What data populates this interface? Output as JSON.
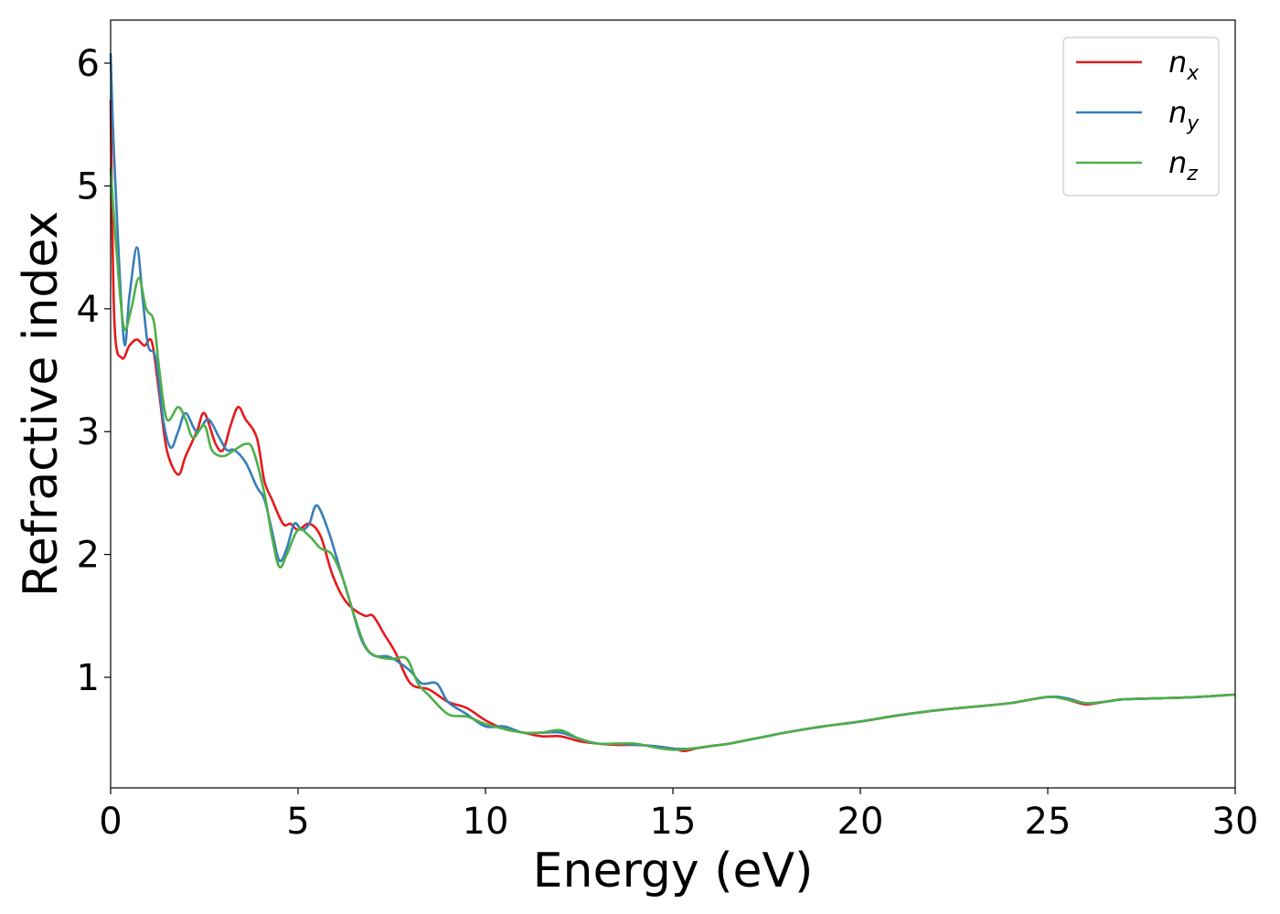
{
  "chart_data": {
    "type": "line",
    "title": "",
    "xlabel": "Energy (eV)",
    "ylabel": "Refractive index",
    "xlim": [
      0,
      30
    ],
    "ylim": [
      0.1,
      6.35
    ],
    "xticks": [
      0,
      5,
      10,
      15,
      20,
      25,
      30
    ],
    "yticks": [
      1,
      2,
      3,
      4,
      5,
      6
    ],
    "grid": false,
    "legend_position": "top-right",
    "series": [
      {
        "name": "n",
        "subscript": "x",
        "color": "#e41a1c",
        "x": [
          0,
          0.1,
          0.3,
          0.5,
          0.7,
          0.9,
          1.1,
          1.3,
          1.5,
          1.8,
          2.0,
          2.3,
          2.5,
          2.8,
          3.0,
          3.2,
          3.4,
          3.6,
          3.9,
          4.1,
          4.3,
          4.6,
          4.8,
          5.0,
          5.3,
          5.6,
          5.9,
          6.2,
          6.5,
          6.8,
          7.0,
          7.3,
          7.6,
          8.0,
          8.5,
          9.0,
          9.5,
          10.0,
          10.5,
          11.0,
          11.5,
          12.0,
          12.5,
          13.0,
          13.5,
          14.0,
          14.5,
          15.0,
          15.3,
          15.6,
          16.0,
          16.5,
          17.0,
          17.5,
          18.0,
          19.0,
          20.0,
          21.0,
          22.0,
          23.0,
          24.0,
          25.0,
          25.5,
          26.0,
          26.5,
          27.0,
          28.0,
          29.0,
          30.0
        ],
        "y": [
          5.7,
          3.9,
          3.6,
          3.7,
          3.75,
          3.7,
          3.73,
          3.3,
          2.85,
          2.65,
          2.8,
          3.0,
          3.15,
          2.9,
          2.85,
          3.05,
          3.2,
          3.1,
          2.95,
          2.6,
          2.45,
          2.25,
          2.25,
          2.2,
          2.25,
          2.15,
          1.85,
          1.65,
          1.55,
          1.5,
          1.5,
          1.35,
          1.2,
          0.95,
          0.9,
          0.8,
          0.75,
          0.65,
          0.58,
          0.55,
          0.52,
          0.52,
          0.48,
          0.46,
          0.45,
          0.45,
          0.44,
          0.42,
          0.4,
          0.42,
          0.44,
          0.46,
          0.49,
          0.52,
          0.55,
          0.6,
          0.64,
          0.69,
          0.73,
          0.76,
          0.79,
          0.84,
          0.82,
          0.78,
          0.8,
          0.82,
          0.83,
          0.84,
          0.86
        ]
      },
      {
        "name": "n",
        "subscript": "y",
        "color": "#377eb8",
        "x": [
          0,
          0.1,
          0.35,
          0.5,
          0.7,
          0.85,
          1.0,
          1.2,
          1.4,
          1.6,
          1.8,
          2.0,
          2.3,
          2.6,
          2.9,
          3.1,
          3.3,
          3.6,
          3.9,
          4.1,
          4.3,
          4.5,
          4.7,
          4.9,
          5.1,
          5.3,
          5.5,
          5.8,
          6.1,
          6.4,
          6.7,
          7.0,
          7.4,
          7.7,
          8.0,
          8.3,
          8.7,
          9.0,
          9.5,
          10.0,
          10.5,
          11.0,
          11.5,
          12.0,
          12.5,
          13.0,
          13.5,
          14.0,
          14.5,
          15.0,
          15.5,
          16.0,
          16.5,
          17.0,
          17.5,
          18.0,
          19.0,
          20.0,
          21.0,
          22.0,
          23.0,
          24.0,
          25.0,
          25.5,
          26.0,
          26.5,
          27.0,
          28.0,
          29.0,
          30.0
        ],
        "y": [
          6.08,
          5.2,
          3.75,
          4.1,
          4.5,
          4.1,
          3.7,
          3.6,
          3.1,
          2.87,
          3.0,
          3.15,
          3.0,
          3.1,
          2.95,
          2.85,
          2.85,
          2.75,
          2.55,
          2.45,
          2.2,
          1.95,
          2.05,
          2.25,
          2.2,
          2.25,
          2.4,
          2.2,
          1.9,
          1.6,
          1.3,
          1.18,
          1.17,
          1.12,
          1.05,
          0.95,
          0.95,
          0.8,
          0.7,
          0.6,
          0.6,
          0.55,
          0.55,
          0.55,
          0.5,
          0.46,
          0.46,
          0.45,
          0.44,
          0.42,
          0.42,
          0.44,
          0.46,
          0.49,
          0.52,
          0.55,
          0.6,
          0.64,
          0.69,
          0.73,
          0.76,
          0.79,
          0.84,
          0.83,
          0.79,
          0.8,
          0.82,
          0.83,
          0.84,
          0.86
        ]
      },
      {
        "name": "n",
        "subscript": "z",
        "color": "#4daf4a",
        "x": [
          0,
          0.15,
          0.35,
          0.55,
          0.75,
          0.95,
          1.15,
          1.3,
          1.5,
          1.8,
          2.0,
          2.2,
          2.5,
          2.7,
          3.0,
          3.3,
          3.6,
          3.8,
          4.1,
          4.3,
          4.5,
          4.7,
          5.0,
          5.3,
          5.6,
          5.9,
          6.2,
          6.5,
          6.8,
          7.1,
          7.5,
          7.9,
          8.2,
          8.5,
          9.0,
          9.5,
          10.0,
          10.5,
          11.0,
          11.5,
          12.0,
          12.5,
          13.0,
          13.5,
          14.0,
          14.5,
          15.0,
          15.5,
          16.0,
          16.5,
          17.0,
          17.5,
          18.0,
          19.0,
          20.0,
          21.0,
          22.0,
          23.0,
          24.0,
          25.0,
          25.5,
          26.0,
          26.5,
          27.0,
          28.0,
          29.0,
          30.0
        ],
        "y": [
          5.15,
          4.5,
          3.85,
          4.0,
          4.25,
          4.0,
          3.9,
          3.5,
          3.1,
          3.2,
          3.1,
          2.95,
          3.05,
          2.85,
          2.8,
          2.85,
          2.9,
          2.85,
          2.5,
          2.15,
          1.9,
          2.0,
          2.2,
          2.15,
          2.05,
          2.0,
          1.8,
          1.5,
          1.25,
          1.17,
          1.15,
          1.15,
          0.95,
          0.85,
          0.7,
          0.68,
          0.62,
          0.58,
          0.55,
          0.55,
          0.57,
          0.5,
          0.46,
          0.46,
          0.46,
          0.43,
          0.41,
          0.42,
          0.44,
          0.46,
          0.49,
          0.52,
          0.55,
          0.6,
          0.64,
          0.69,
          0.73,
          0.76,
          0.79,
          0.84,
          0.82,
          0.79,
          0.8,
          0.82,
          0.83,
          0.84,
          0.86
        ]
      }
    ]
  }
}
